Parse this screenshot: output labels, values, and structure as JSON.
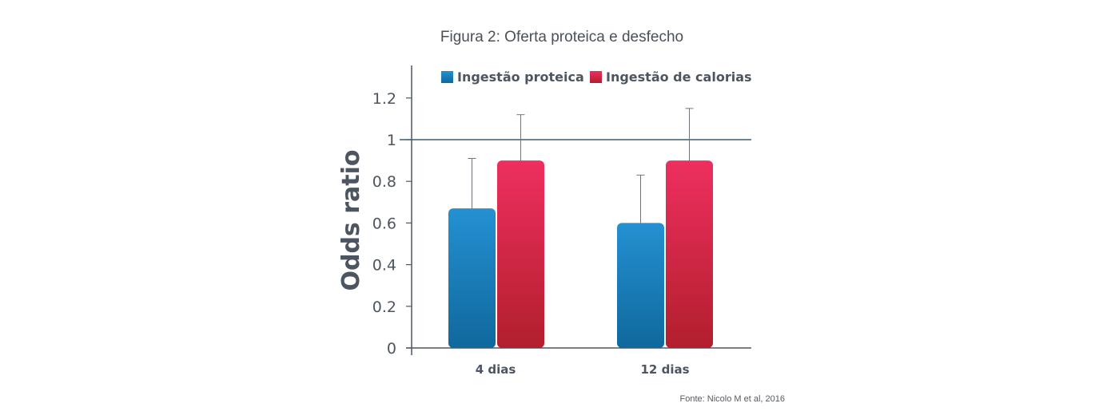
{
  "chart_data": {
    "type": "bar",
    "title": "Figura 2: Oferta proteica e desfecho",
    "ylabel": "Odds ratio",
    "xlabel": "",
    "categories": [
      "4 dias",
      "12 dias"
    ],
    "series": [
      {
        "name": "Ingestão proteica",
        "values": [
          0.67,
          0.6
        ],
        "error_upper": [
          0.91,
          0.83
        ],
        "color_top": "#2491d2",
        "color_bottom": "#10689c"
      },
      {
        "name": "Ingestão de calorias",
        "values": [
          0.9,
          0.9
        ],
        "error_upper": [
          1.12,
          1.15
        ],
        "color_top": "#ee2f5f",
        "color_bottom": "#b21f2d"
      }
    ],
    "ylim": [
      0,
      1.3
    ],
    "yticks": [
      0,
      0.2,
      0.4,
      0.6,
      0.8,
      1,
      1.2
    ],
    "ytick_labels": [
      "0",
      "0.2",
      "0.4",
      "0.6",
      "0.8",
      "1",
      "1.2"
    ],
    "reference_line": 1,
    "reference_line_color": "#3b5a6e",
    "legend_position": "top",
    "grid": false,
    "source": "Fonte: Nicolo M et al, 2016"
  }
}
